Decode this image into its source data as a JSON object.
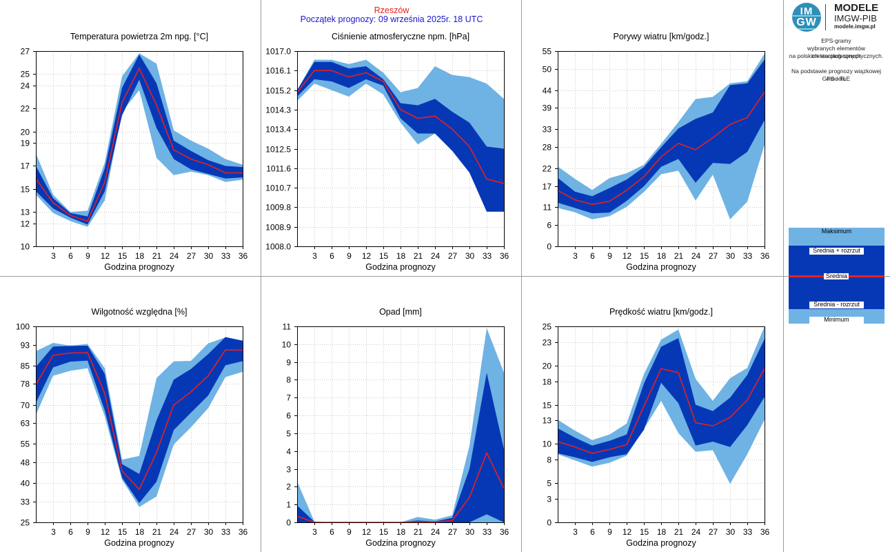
{
  "header": {
    "station": "Rzeszów",
    "forecast_start": "Początek prognozy: 09 września 2025r. 18 UTC"
  },
  "logo": {
    "line1": "IM",
    "line2": "GW",
    "title": "MODELE",
    "org": "IMGW-PIB",
    "url": "modele.imgw.pl"
  },
  "description": {
    "line1": "EPS-gramy",
    "line2": "wybranych elementów meteorologicznych",
    "line3": "na polskich stacjach  synoptycznych.",
    "line4": "Na podstawie prognozy wiązkowej modelu",
    "line5": "GFS - TLE"
  },
  "legend": {
    "max": "Maksimum",
    "plus": "Średnia + rozrzut",
    "mean": "Średnia",
    "minus": "Średnia - rozrzut",
    "min": "Minimum"
  },
  "colors": {
    "outer_band": "#6fb2e4",
    "inner_band": "#0638b6",
    "mean_line": "#e8201c",
    "header_city": "#e8201c",
    "header_sub": "#1a18c8"
  },
  "chart_data": [
    {
      "id": "temperature",
      "type": "area",
      "title": "Temperatura powietrza 2m npg. [°C]",
      "xlabel": "Godzina prognozy",
      "ylabel": "",
      "x": [
        0,
        3,
        6,
        9,
        12,
        15,
        18,
        21,
        24,
        27,
        30,
        33,
        36
      ],
      "xticks": [
        "3",
        "6",
        "9",
        "12",
        "15",
        "18",
        "21",
        "24",
        "27",
        "30",
        "33",
        "36"
      ],
      "ylim": [
        10,
        27
      ],
      "yticks": [
        "10",
        "12",
        "13",
        "15",
        "17",
        "19",
        "20",
        "22",
        "24",
        "25",
        "27"
      ],
      "series": [
        {
          "name": "Maksimum",
          "values": [
            18.1,
            14.5,
            13.0,
            13.1,
            17.3,
            24.8,
            26.8,
            25.9,
            20.1,
            19.2,
            18.5,
            17.6,
            17.1
          ]
        },
        {
          "name": "Średnia + rozrzut",
          "values": [
            17.0,
            14.2,
            12.9,
            12.6,
            16.8,
            23.8,
            26.7,
            24.2,
            19.2,
            18.3,
            17.5,
            17.0,
            16.9
          ]
        },
        {
          "name": "Średnia",
          "values": [
            15.9,
            13.8,
            12.7,
            12.2,
            15.6,
            22.5,
            25.5,
            22.3,
            18.4,
            17.6,
            17.1,
            16.4,
            16.4
          ]
        },
        {
          "name": "Średnia - rozrzut",
          "values": [
            14.8,
            13.3,
            12.5,
            11.9,
            14.8,
            21.4,
            24.5,
            20.3,
            17.6,
            16.7,
            16.3,
            15.9,
            16.0
          ]
        },
        {
          "name": "Minimum",
          "values": [
            14.5,
            12.9,
            12.2,
            11.7,
            14.0,
            21.7,
            23.6,
            17.7,
            16.2,
            16.5,
            16.2,
            15.6,
            15.8
          ]
        }
      ]
    },
    {
      "id": "pressure",
      "type": "area",
      "title": "Ciśnienie atmosferyczne npm. [hPa]",
      "xlabel": "Godzina prognozy",
      "ylabel": "",
      "x": [
        0,
        3,
        6,
        9,
        12,
        15,
        18,
        21,
        24,
        27,
        30,
        33,
        36
      ],
      "xticks": [
        "3",
        "6",
        "9",
        "12",
        "15",
        "18",
        "21",
        "24",
        "27",
        "30",
        "33",
        "36"
      ],
      "ylim": [
        1008.0,
        1017.0
      ],
      "yticks": [
        "1008.0",
        "1008.9",
        "1009.8",
        "1010.7",
        "1011.6",
        "1012.5",
        "1013.4",
        "1014.3",
        "1015.2",
        "1016.1",
        "1017.0"
      ],
      "series": [
        {
          "name": "Maksimum",
          "values": [
            1015.2,
            1016.6,
            1016.6,
            1016.4,
            1016.6,
            1016.0,
            1015.1,
            1015.3,
            1016.3,
            1015.9,
            1015.8,
            1015.5,
            1014.8
          ]
        },
        {
          "name": "Średnia + rozrzut",
          "values": [
            1015.2,
            1016.5,
            1016.5,
            1016.2,
            1016.3,
            1015.7,
            1014.6,
            1014.5,
            1014.8,
            1014.2,
            1013.7,
            1012.6,
            1012.5
          ]
        },
        {
          "name": "Średnia",
          "values": [
            1015.1,
            1016.1,
            1016.1,
            1015.8,
            1016.0,
            1015.6,
            1014.3,
            1013.9,
            1014.0,
            1013.4,
            1012.6,
            1011.1,
            1010.9
          ]
        },
        {
          "name": "Średnia - rozrzut",
          "values": [
            1014.9,
            1015.7,
            1015.6,
            1015.3,
            1015.7,
            1015.4,
            1013.9,
            1013.2,
            1013.2,
            1012.4,
            1011.4,
            1009.6,
            1009.6
          ]
        },
        {
          "name": "Minimum",
          "values": [
            1014.7,
            1015.5,
            1015.2,
            1014.9,
            1015.5,
            1015.0,
            1013.7,
            1012.7,
            1013.2,
            1012.4,
            1011.4,
            1009.6,
            1009.6
          ]
        }
      ]
    },
    {
      "id": "gusts",
      "type": "area",
      "title": "Porywy wiatru [km/godz.]",
      "xlabel": "Godzina prognozy",
      "ylabel": "",
      "x": [
        0,
        3,
        6,
        9,
        12,
        15,
        18,
        21,
        24,
        27,
        30,
        33,
        36
      ],
      "xticks": [
        "3",
        "6",
        "9",
        "12",
        "15",
        "18",
        "21",
        "24",
        "27",
        "30",
        "33",
        "36"
      ],
      "ylim": [
        0,
        55
      ],
      "yticks": [
        "0",
        "6",
        "11",
        "17",
        "22",
        "28",
        "33",
        "39",
        "44",
        "50",
        "55"
      ],
      "series": [
        {
          "name": "Maksimum",
          "values": [
            22.5,
            19.0,
            15.9,
            19.2,
            20.6,
            23.0,
            28.9,
            35.0,
            41.5,
            42.1,
            45.9,
            46.5,
            54.3
          ]
        },
        {
          "name": "Średnia + rozrzut",
          "values": [
            19.3,
            15.4,
            14.1,
            16.4,
            18.8,
            22.3,
            27.9,
            33.2,
            35.9,
            37.7,
            45.4,
            45.9,
            52.6
          ]
        },
        {
          "name": "Średnia",
          "values": [
            15.7,
            13.1,
            11.8,
            12.7,
            15.8,
            19.6,
            25.2,
            29.0,
            27.2,
            30.6,
            34.3,
            36.3,
            43.5
          ]
        },
        {
          "name": "Średnia - rozrzut",
          "values": [
            12.3,
            10.8,
            9.3,
            9.5,
            12.8,
            16.9,
            22.4,
            24.6,
            17.9,
            23.5,
            23.2,
            26.6,
            35.5
          ]
        },
        {
          "name": "Minimum",
          "values": [
            10.8,
            9.6,
            7.6,
            8.5,
            11.1,
            15.3,
            20.3,
            21.3,
            12.9,
            20.2,
            7.6,
            12.6,
            28.6
          ]
        }
      ]
    },
    {
      "id": "humidity",
      "type": "area",
      "title": "Wilgotność względna [%]",
      "xlabel": "Godzina prognozy",
      "ylabel": "",
      "x": [
        0,
        3,
        6,
        9,
        12,
        15,
        18,
        21,
        24,
        27,
        30,
        33,
        36
      ],
      "xticks": [
        "3",
        "6",
        "9",
        "12",
        "15",
        "18",
        "21",
        "24",
        "27",
        "30",
        "33",
        "36"
      ],
      "ylim": [
        25,
        100
      ],
      "yticks": [
        "25",
        "33",
        "40",
        "48",
        "55",
        "63",
        "70",
        "78",
        "85",
        "93",
        "100"
      ],
      "series": [
        {
          "name": "Maksimum",
          "values": [
            90.5,
            93.7,
            92.6,
            93.3,
            84.0,
            49.0,
            50.4,
            80.2,
            86.6,
            86.8,
            93.5,
            95.8,
            94.3
          ]
        },
        {
          "name": "Średnia + rozrzut",
          "values": [
            84.5,
            92.3,
            92.5,
            92.6,
            81.8,
            47.3,
            43.5,
            64.0,
            79.6,
            83.7,
            89.4,
            95.9,
            94.5
          ]
        },
        {
          "name": "Średnia",
          "values": [
            77.7,
            88.9,
            89.8,
            89.9,
            74.3,
            44.7,
            37.6,
            51.7,
            69.9,
            74.9,
            81.1,
            91.0,
            90.9
          ]
        },
        {
          "name": "Średnia - rozrzut",
          "values": [
            70.7,
            84.3,
            86.5,
            86.9,
            67.8,
            42.1,
            32.4,
            40.5,
            60.3,
            67.0,
            73.5,
            85.1,
            86.7
          ]
        },
        {
          "name": "Minimum",
          "values": [
            66.1,
            81.1,
            83.0,
            84.0,
            65.5,
            41.3,
            30.9,
            34.9,
            54.8,
            61.4,
            68.7,
            80.6,
            82.6
          ]
        }
      ]
    },
    {
      "id": "precipitation",
      "type": "area",
      "title": "Opad [mm]",
      "xlabel": "Godzina prognozy",
      "ylabel": "",
      "x": [
        0,
        3,
        6,
        9,
        12,
        15,
        18,
        21,
        24,
        27,
        30,
        33,
        36
      ],
      "xticks": [
        "3",
        "6",
        "9",
        "12",
        "15",
        "18",
        "21",
        "24",
        "27",
        "30",
        "33",
        "36"
      ],
      "ylim": [
        0,
        11
      ],
      "yticks": [
        "0",
        "1",
        "2",
        "3",
        "4",
        "5",
        "6",
        "7",
        "8",
        "9",
        "10",
        "11"
      ],
      "series": [
        {
          "name": "Maksimum",
          "values": [
            2.3,
            0.05,
            0.0,
            0.0,
            0.0,
            0.0,
            0.0,
            0.3,
            0.15,
            0.4,
            4.3,
            10.9,
            8.4
          ]
        },
        {
          "name": "Średnia + rozrzut",
          "values": [
            0.95,
            0.03,
            0.0,
            0.0,
            0.0,
            0.0,
            0.0,
            0.1,
            0.05,
            0.25,
            3.0,
            8.4,
            4.1
          ]
        },
        {
          "name": "Średnia",
          "values": [
            0.35,
            0.0,
            0.0,
            0.0,
            0.0,
            0.0,
            0.0,
            0.03,
            0.02,
            0.1,
            1.4,
            3.9,
            1.9
          ]
        },
        {
          "name": "Średnia - rozrzut",
          "values": [
            0.0,
            0.0,
            0.0,
            0.0,
            0.0,
            0.0,
            0.0,
            0.0,
            0.0,
            0.0,
            0.0,
            0.45,
            0.0
          ]
        },
        {
          "name": "Minimum",
          "values": [
            0.0,
            0.0,
            0.0,
            0.0,
            0.0,
            0.0,
            0.0,
            0.0,
            0.0,
            0.0,
            0.0,
            0.0,
            0.0
          ]
        }
      ]
    },
    {
      "id": "wind_speed",
      "type": "area",
      "title": "Prędkość wiatru [km/godz.]",
      "xlabel": "Godzina prognozy",
      "ylabel": "",
      "x": [
        0,
        3,
        6,
        9,
        12,
        15,
        18,
        21,
        24,
        27,
        30,
        33,
        36
      ],
      "xticks": [
        "3",
        "6",
        "9",
        "12",
        "15",
        "18",
        "21",
        "24",
        "27",
        "30",
        "33",
        "36"
      ],
      "ylim": [
        0,
        25
      ],
      "yticks": [
        "0",
        "3",
        "5",
        "8",
        "10",
        "13",
        "15",
        "18",
        "20",
        "23",
        "25"
      ],
      "series": [
        {
          "name": "Maksimum",
          "values": [
            13.1,
            11.7,
            10.5,
            11.2,
            12.6,
            18.9,
            23.3,
            24.6,
            18.3,
            15.5,
            18.4,
            19.7,
            25.0
          ]
        },
        {
          "name": "Średnia + rozrzut",
          "values": [
            12.0,
            10.8,
            9.8,
            10.4,
            11.2,
            17.7,
            22.4,
            23.5,
            15.0,
            14.2,
            15.9,
            18.8,
            23.4
          ]
        },
        {
          "name": "Średnia",
          "values": [
            10.3,
            9.6,
            8.8,
            9.3,
            9.9,
            14.8,
            19.6,
            19.1,
            12.7,
            12.3,
            13.4,
            15.6,
            19.6
          ]
        },
        {
          "name": "Średnia - rozrzut",
          "values": [
            8.8,
            8.3,
            7.7,
            8.3,
            8.7,
            11.8,
            17.8,
            15.2,
            9.8,
            10.3,
            9.6,
            12.4,
            16.0
          ]
        },
        {
          "name": "Minimum",
          "values": [
            8.7,
            7.9,
            7.1,
            7.6,
            8.5,
            11.9,
            15.5,
            11.4,
            9.0,
            9.2,
            4.9,
            8.7,
            13.1
          ]
        }
      ]
    }
  ]
}
